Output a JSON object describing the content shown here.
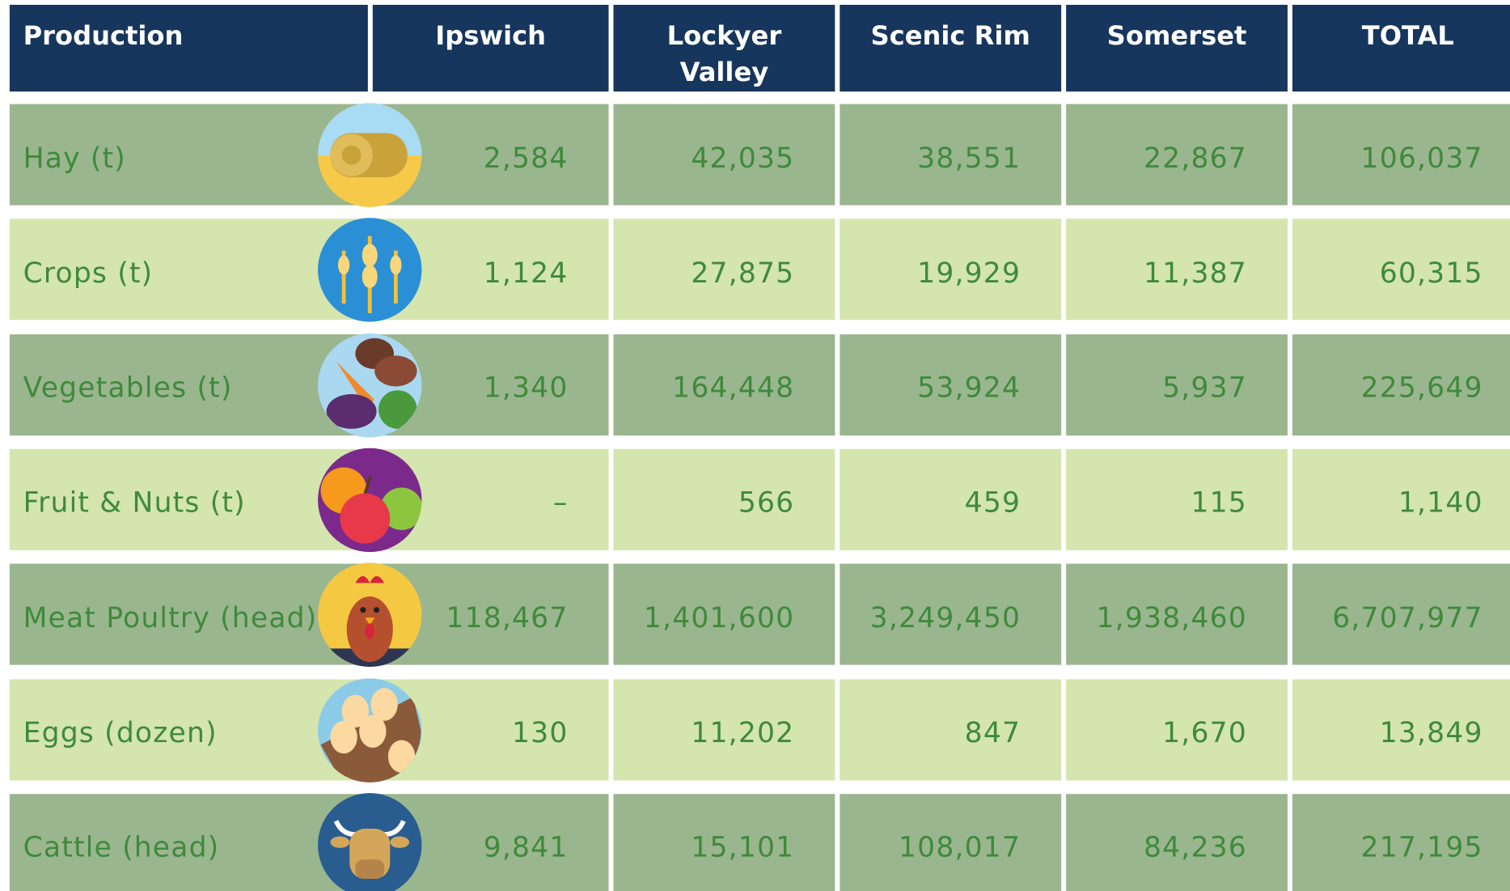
{
  "table": {
    "header": [
      "Production",
      "Ipswich",
      "Lockyer Valley",
      "Scenic Rim",
      "Somerset",
      "TOTAL"
    ],
    "rows": [
      [
        "Hay (t)",
        "2,584",
        "42,035",
        "38,551",
        "22,867",
        "106,037"
      ],
      [
        "Crops (t)",
        "1,124",
        "27,875",
        "19,929",
        "11,387",
        "60,315"
      ],
      [
        "Vegetables (t)",
        "1,340",
        "164,448",
        "53,924",
        "5,937",
        "225,649"
      ],
      [
        "Fruit & Nuts (t)",
        "–",
        "566",
        "459",
        "115",
        "1,140"
      ],
      [
        "Meat Poultry (head)",
        "118,467",
        "1,401,600",
        "3,249,450",
        "1,938,460",
        "6,707,977"
      ],
      [
        "Eggs (dozen)",
        "130",
        "11,202",
        "847",
        "1,670",
        "13,849"
      ],
      [
        "Cattle (head)",
        "9,841",
        "15,101",
        "108,017",
        "84,236",
        "217,195"
      ]
    ]
  }
}
